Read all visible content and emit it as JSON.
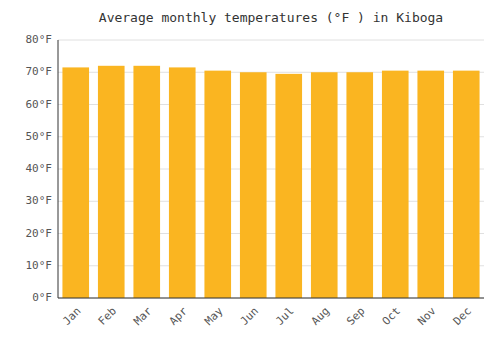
{
  "chart_data": {
    "type": "bar",
    "title": "Average monthly temperatures (°F ) in Kiboga",
    "categories": [
      "Jan",
      "Feb",
      "Mar",
      "Apr",
      "May",
      "Jun",
      "Jul",
      "Aug",
      "Sep",
      "Oct",
      "Nov",
      "Dec"
    ],
    "values": [
      71.5,
      72.0,
      72.0,
      71.5,
      70.5,
      70.0,
      69.5,
      70.0,
      70.0,
      70.5,
      70.5,
      70.5
    ],
    "color": "#FAB521",
    "ylim": [
      0,
      80
    ],
    "yticks": [
      {
        "value": 0,
        "label": "0°F"
      },
      {
        "value": 10,
        "label": "10°F"
      },
      {
        "value": 20,
        "label": "20°F"
      },
      {
        "value": 30,
        "label": "30°F"
      },
      {
        "value": 40,
        "label": "40°F"
      },
      {
        "value": 50,
        "label": "50°F"
      },
      {
        "value": 60,
        "label": "60°F"
      },
      {
        "value": 70,
        "label": "70°F"
      },
      {
        "value": 80,
        "label": "80°F"
      }
    ],
    "grid": true
  }
}
